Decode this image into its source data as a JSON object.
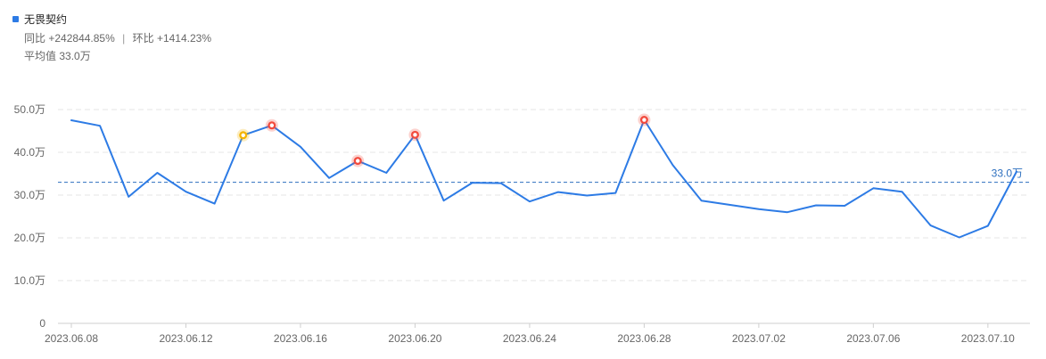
{
  "header": {
    "series_name": "无畏契约",
    "yoy_label": "同比",
    "yoy_value": "+242844.85%",
    "separator": "|",
    "mom_label": "环比",
    "mom_value": "+1414.23%",
    "avg_label": "平均值",
    "avg_value": "33.0万"
  },
  "colors": {
    "line": "#2d7be5",
    "average_line": "#2d6fbe",
    "marker_red": "#f24a3d",
    "marker_yellow": "#f4b400",
    "grid": "#e6e6e6"
  },
  "chart_data": {
    "type": "line",
    "unit": "万",
    "x": [
      "2023.06.08",
      "2023.06.09",
      "2023.06.10",
      "2023.06.11",
      "2023.06.12",
      "2023.06.13",
      "2023.06.14",
      "2023.06.15",
      "2023.06.16",
      "2023.06.17",
      "2023.06.18",
      "2023.06.19",
      "2023.06.20",
      "2023.06.21",
      "2023.06.22",
      "2023.06.23",
      "2023.06.24",
      "2023.06.25",
      "2023.06.26",
      "2023.06.27",
      "2023.06.28",
      "2023.06.29",
      "2023.06.30",
      "2023.07.01",
      "2023.07.02",
      "2023.07.03",
      "2023.07.04",
      "2023.07.05",
      "2023.07.06",
      "2023.07.07",
      "2023.07.08",
      "2023.07.09",
      "2023.07.10",
      "2023.07.11"
    ],
    "series": [
      {
        "name": "无畏契约",
        "values": [
          47.5,
          46.2,
          29.6,
          35.2,
          30.8,
          28.0,
          44.0,
          46.3,
          41.3,
          34.0,
          38.0,
          35.2,
          44.1,
          28.7,
          32.9,
          32.8,
          28.5,
          30.7,
          29.9,
          30.5,
          47.6,
          37.0,
          28.7,
          27.7,
          26.7,
          26.0,
          27.6,
          27.5,
          31.6,
          30.8,
          22.9,
          20.1,
          22.8,
          35.5
        ]
      }
    ],
    "average": 33.0,
    "average_label": "33.0万",
    "highlights": [
      {
        "date": "2023.06.14",
        "color": "yellow"
      },
      {
        "date": "2023.06.15",
        "color": "red"
      },
      {
        "date": "2023.06.18",
        "color": "red"
      },
      {
        "date": "2023.06.20",
        "color": "red"
      },
      {
        "date": "2023.06.28",
        "color": "red"
      }
    ],
    "x_tick_labels": [
      "2023.06.08",
      "2023.06.12",
      "2023.06.16",
      "2023.06.20",
      "2023.06.24",
      "2023.06.28",
      "2023.07.02",
      "2023.07.06",
      "2023.07.10"
    ],
    "y_tick_values": [
      0,
      10,
      20,
      30,
      40,
      50
    ],
    "y_tick_labels": [
      "0",
      "10.0万",
      "20.0万",
      "30.0万",
      "40.0万",
      "50.0万"
    ],
    "ylim": [
      0,
      50
    ],
    "grid": true,
    "legend_position": "top-left"
  }
}
